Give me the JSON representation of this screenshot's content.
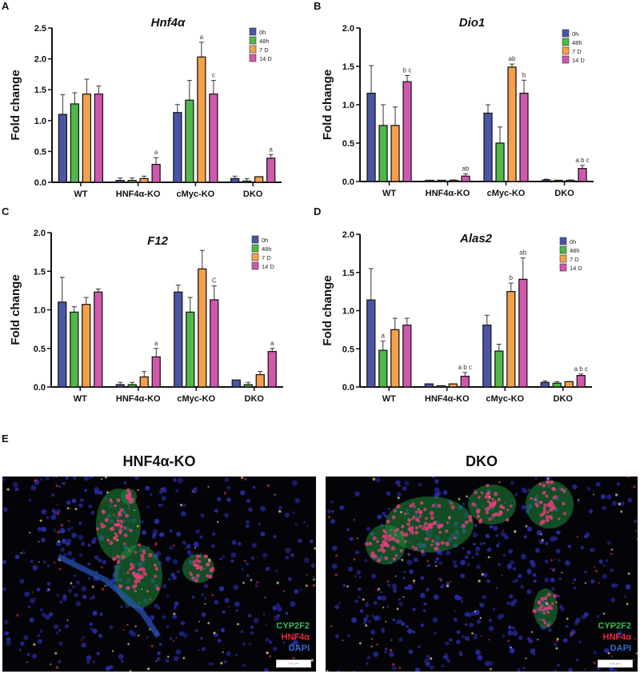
{
  "legend": {
    "items": [
      {
        "label": "0h",
        "color": "#4b55a6"
      },
      {
        "label": "48h",
        "color": "#4fb848"
      },
      {
        "label": "7 D",
        "color": "#f5a04a"
      },
      {
        "label": "14 D",
        "color": "#d058ad"
      }
    ]
  },
  "panels": {
    "A": {
      "letter": "A"
    },
    "B": {
      "letter": "B"
    },
    "C": {
      "letter": "C"
    },
    "D": {
      "letter": "D"
    },
    "E": {
      "letter": "E",
      "images": [
        {
          "title": "HNF4α-KO",
          "legend": [
            "CYP2F2",
            "HNF4α",
            "DAPI"
          ],
          "scale_bar": "100 μm"
        },
        {
          "title": "DKO",
          "legend": [
            "CYP2F2",
            "HNF4α",
            "DAPI"
          ],
          "scale_bar": "100 μm"
        }
      ],
      "legend_colors": {
        "CYP2F2": "#2fbf5a",
        "HNF4α": "#e8283a",
        "DAPI": "#2f6fd0"
      }
    }
  },
  "chart_data": [
    {
      "panel": "A",
      "type": "bar",
      "title": "Hnf4α",
      "xlabel": "",
      "ylabel": "Fold change",
      "ylim": [
        0,
        2.5
      ],
      "yticks": [
        0.0,
        0.5,
        1.0,
        1.5,
        2.0,
        2.5
      ],
      "categories": [
        "WT",
        "HNF4α-KO",
        "cMyc-KO",
        "DKO"
      ],
      "legend_position": "top-right",
      "series": [
        {
          "name": "0h",
          "values": [
            1.1,
            0.03,
            1.13,
            0.06
          ],
          "errors": [
            0.32,
            0.04,
            0.13,
            0.04
          ]
        },
        {
          "name": "48h",
          "values": [
            1.27,
            0.03,
            1.33,
            0.02
          ],
          "errors": [
            0.18,
            0.04,
            0.32,
            0.04
          ]
        },
        {
          "name": "7 D",
          "values": [
            1.43,
            0.06,
            2.03,
            0.09
          ],
          "errors": [
            0.24,
            0.04,
            0.24,
            0.0
          ]
        },
        {
          "name": "14 D",
          "values": [
            1.43,
            0.29,
            1.43,
            0.39
          ],
          "errors": [
            0.13,
            0.11,
            0.22,
            0.06
          ]
        }
      ],
      "annotations": [
        {
          "category": "HNF4α-KO",
          "series": "14 D",
          "text": "a"
        },
        {
          "category": "cMyc-KO",
          "series": "7 D",
          "text": "a"
        },
        {
          "category": "cMyc-KO",
          "series": "14 D",
          "text": "c"
        },
        {
          "category": "DKO",
          "series": "14 D",
          "text": "a"
        }
      ]
    },
    {
      "panel": "B",
      "type": "bar",
      "title": "Dio1",
      "xlabel": "",
      "ylabel": "Fold change",
      "ylim": [
        0,
        2.0
      ],
      "yticks": [
        0.0,
        0.5,
        1.0,
        1.5,
        2.0
      ],
      "categories": [
        "WT",
        "HNF4α-KO",
        "cMyc-KO",
        "DKO"
      ],
      "legend_position": "top-right",
      "series": [
        {
          "name": "0h",
          "values": [
            1.15,
            0.0,
            0.89,
            0.02
          ],
          "errors": [
            0.36,
            0.0,
            0.11,
            0.01
          ]
        },
        {
          "name": "48h",
          "values": [
            0.73,
            0.0,
            0.5,
            0.01
          ],
          "errors": [
            0.27,
            0.0,
            0.21,
            0.0
          ]
        },
        {
          "name": "7 D",
          "values": [
            0.73,
            0.01,
            1.49,
            0.01
          ],
          "errors": [
            0.24,
            0.01,
            0.04,
            0.01
          ]
        },
        {
          "name": "14 D",
          "values": [
            1.3,
            0.07,
            1.15,
            0.17
          ],
          "errors": [
            0.08,
            0.03,
            0.17,
            0.04
          ]
        }
      ],
      "annotations": [
        {
          "category": "WT",
          "series": "14 D",
          "text": "b c"
        },
        {
          "category": "HNF4α-KO",
          "series": "14 D",
          "text": "ab"
        },
        {
          "category": "cMyc-KO",
          "series": "7 D",
          "text": "ab"
        },
        {
          "category": "cMyc-KO",
          "series": "14 D",
          "text": "b"
        },
        {
          "category": "DKO",
          "series": "14 D",
          "text": "a b c"
        }
      ]
    },
    {
      "panel": "C",
      "type": "bar",
      "title": "F12",
      "xlabel": "",
      "ylabel": "Fold change",
      "ylim": [
        0,
        2.0
      ],
      "yticks": [
        0.0,
        0.5,
        1.0,
        1.5,
        2.0
      ],
      "categories": [
        "WT",
        "HNF4α-KO",
        "cMyc-KO",
        "DKO"
      ],
      "legend_position": "top-right",
      "series": [
        {
          "name": "0h",
          "values": [
            1.1,
            0.03,
            1.23,
            0.09
          ],
          "errors": [
            0.32,
            0.03,
            0.09,
            0.0
          ]
        },
        {
          "name": "48h",
          "values": [
            0.97,
            0.03,
            0.97,
            0.03
          ],
          "errors": [
            0.07,
            0.03,
            0.19,
            0.03
          ]
        },
        {
          "name": "7 D",
          "values": [
            1.07,
            0.13,
            1.53,
            0.16
          ],
          "errors": [
            0.09,
            0.07,
            0.24,
            0.04
          ]
        },
        {
          "name": "14 D",
          "values": [
            1.23,
            0.39,
            1.13,
            0.46
          ],
          "errors": [
            0.04,
            0.11,
            0.18,
            0.04
          ]
        }
      ],
      "annotations": [
        {
          "category": "HNF4α-KO",
          "series": "14 D",
          "text": "a"
        },
        {
          "category": "cMyc-KO",
          "series": "14 D",
          "text": "C"
        },
        {
          "category": "DKO",
          "series": "14 D",
          "text": "a"
        }
      ]
    },
    {
      "panel": "D",
      "type": "bar",
      "title": "Alas2",
      "xlabel": "",
      "ylabel": "Fold change",
      "ylim": [
        0,
        2.0
      ],
      "yticks": [
        0.0,
        0.5,
        1.0,
        1.5,
        2.0
      ],
      "categories": [
        "WT",
        "HNF4α-KO",
        "cMyc-KO",
        "DKO"
      ],
      "legend_position": "top-right",
      "series": [
        {
          "name": "0h",
          "values": [
            1.14,
            0.04,
            0.81,
            0.06
          ],
          "errors": [
            0.41,
            0.0,
            0.13,
            0.02
          ]
        },
        {
          "name": "48h",
          "values": [
            0.48,
            0.01,
            0.47,
            0.05
          ],
          "errors": [
            0.12,
            0.0,
            0.09,
            0.02
          ]
        },
        {
          "name": "7 D",
          "values": [
            0.75,
            0.04,
            1.25,
            0.07
          ],
          "errors": [
            0.15,
            0.0,
            0.11,
            0.0
          ]
        },
        {
          "name": "14 D",
          "values": [
            0.81,
            0.14,
            1.41,
            0.15
          ],
          "errors": [
            0.09,
            0.05,
            0.28,
            0.02
          ]
        }
      ],
      "annotations": [
        {
          "category": "WT",
          "series": "48h",
          "text": "a"
        },
        {
          "category": "HNF4α-KO",
          "series": "14 D",
          "text": "a b c"
        },
        {
          "category": "cMyc-KO",
          "series": "7 D",
          "text": "b"
        },
        {
          "category": "cMyc-KO",
          "series": "14 D",
          "text": "ab"
        },
        {
          "category": "DKO",
          "series": "14 D",
          "text": "a b c"
        }
      ]
    }
  ]
}
